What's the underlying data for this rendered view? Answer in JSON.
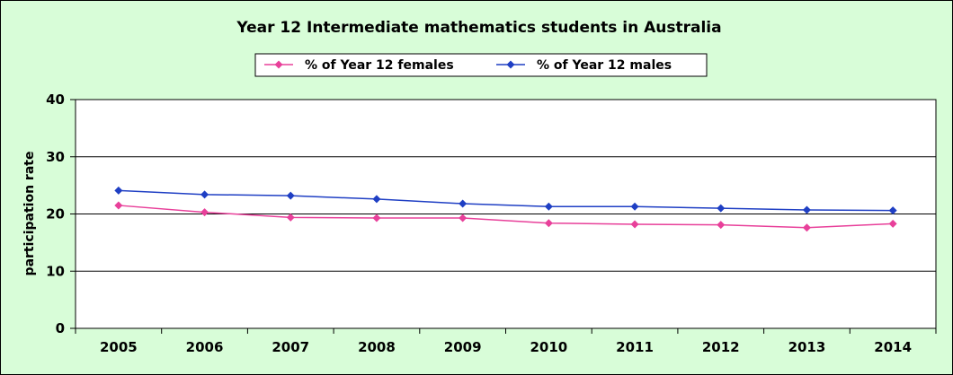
{
  "chart_data": {
    "type": "line",
    "title": "Year 12 Intermediate mathematics students in Australia",
    "xlabel": "",
    "ylabel": "participation rate",
    "categories": [
      "2005",
      "2006",
      "2007",
      "2008",
      "2009",
      "2010",
      "2011",
      "2012",
      "2013",
      "2014"
    ],
    "series": [
      {
        "name": "% of Year 12 females",
        "color": "#e8409a",
        "marker": "diamond",
        "values": [
          21.5,
          20.3,
          19.4,
          19.3,
          19.3,
          18.4,
          18.2,
          18.1,
          17.6,
          18.3
        ]
      },
      {
        "name": "% of Year 12 males",
        "color": "#1f3fc4",
        "marker": "diamond",
        "values": [
          24.1,
          23.4,
          23.2,
          22.6,
          21.8,
          21.3,
          21.3,
          21.0,
          20.7,
          20.6
        ]
      }
    ],
    "ylim": [
      0,
      40
    ],
    "yticks": [
      0,
      10,
      20,
      30,
      40
    ],
    "grid": "horizontal",
    "legend": "top-center",
    "colors": {
      "background": "#d8fdd8",
      "plot_background": "#ffffff",
      "gridline": "#000000"
    }
  }
}
